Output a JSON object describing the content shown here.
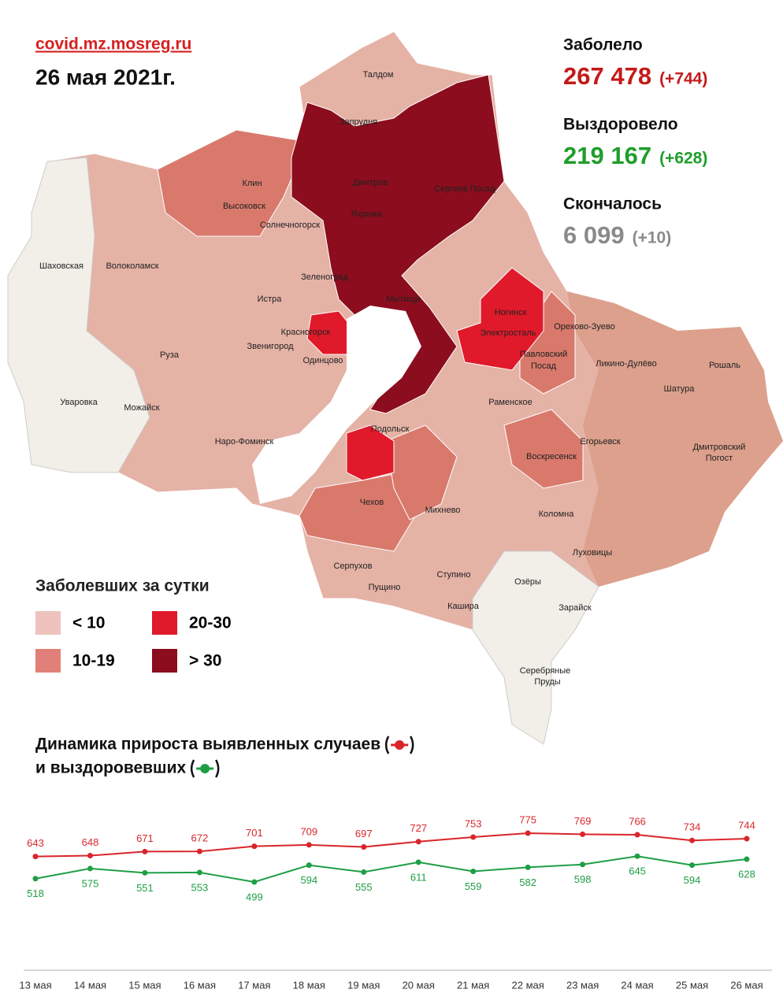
{
  "header": {
    "site": "covid.mz.mosreg.ru",
    "date": "26 мая 2021г."
  },
  "stats": [
    {
      "label": "Заболело",
      "value": "267 478",
      "change": "(+744)"
    },
    {
      "label": "Выздоровело",
      "value": "219 167",
      "change": "(+628)"
    },
    {
      "label": "Скончалось",
      "value": "6 099",
      "change": "(+10)"
    }
  ],
  "legend": {
    "title": "Заболевших за сутки",
    "items": [
      "< 10",
      "10-19",
      "20-30",
      "> 30"
    ]
  },
  "map_labels": [
    "Талдом",
    "Запрудня",
    "Дмитров",
    "Сергиев Посад",
    "Яхрома",
    "Клин",
    "Высоковск",
    "Солнечногорск",
    "Шаховская",
    "Волоколамск",
    "Зеленоград",
    "Истра",
    "Мытищи",
    "Красногорск",
    "Ногинск",
    "Электросталь",
    "Орехово-Зуево",
    "Павловский",
    "Посад",
    "Звенигород",
    "Одинцово",
    "Руза",
    "Ликино-Дулёво",
    "Рошаль",
    "Шатура",
    "Уваровка",
    "Можайск",
    "Раменское",
    "Наро-Фоминск",
    "Подольск",
    "Егорьевск",
    "Воскресенск",
    "Дмитровский",
    "Погост",
    "Чехов",
    "Михнево",
    "Коломна",
    "Луховицы",
    "Серпухов",
    "Пущино",
    "Ступино",
    "Озёры",
    "Кашира",
    "Зарайск",
    "Серебряные",
    "Пруды"
  ],
  "chart_data": {
    "type": "line",
    "categories": [
      "13 мая",
      "14 мая",
      "15 мая",
      "16 мая",
      "17 мая",
      "18 мая",
      "19 мая",
      "20 мая",
      "21 мая",
      "22 мая",
      "23 мая",
      "24 мая",
      "25 мая",
      "26 мая"
    ],
    "series": [
      {
        "name": "Динамика прироста выявленных случаев",
        "color": "#d9252a",
        "values": [
          643,
          648,
          671,
          672,
          701,
          709,
          697,
          727,
          753,
          775,
          769,
          766,
          734,
          744
        ]
      },
      {
        "name": "и выздоровевших",
        "color": "#1f9e45",
        "values": [
          518,
          575,
          551,
          553,
          499,
          594,
          555,
          611,
          559,
          582,
          598,
          645,
          594,
          628
        ]
      }
    ]
  }
}
